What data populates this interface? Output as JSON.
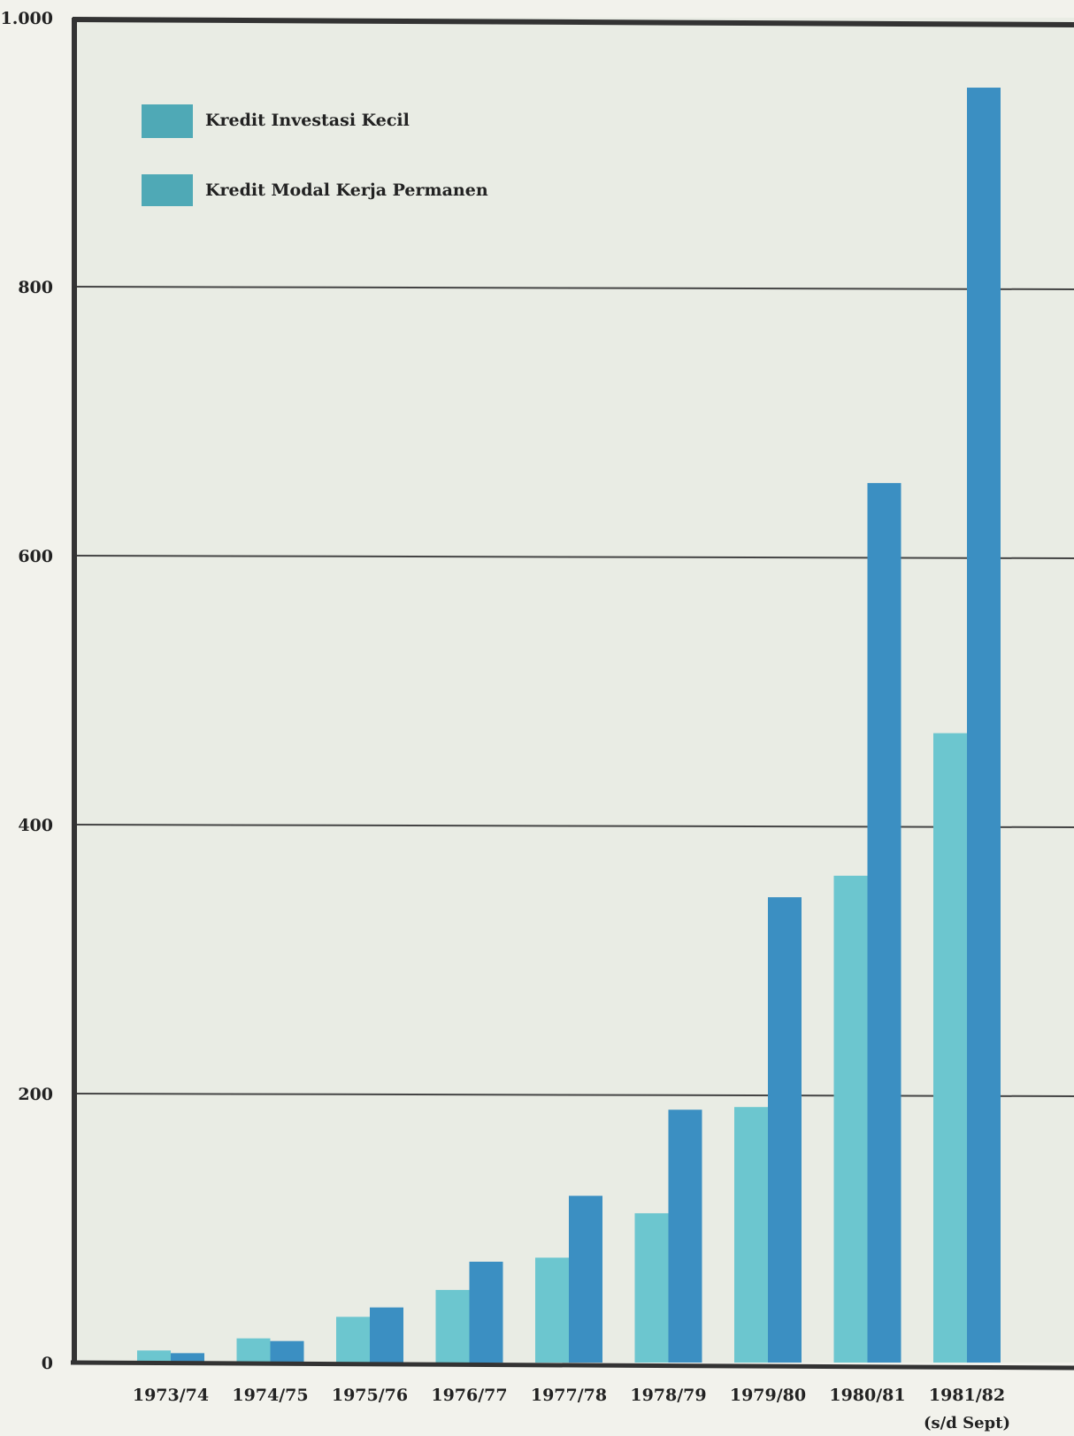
{
  "chart_data": {
    "type": "bar",
    "title": "",
    "xlabel": "",
    "ylabel": "",
    "ylim": [
      0,
      1000
    ],
    "yticks": [
      {
        "value": 0,
        "label": "0"
      },
      {
        "value": 200,
        "label": "200"
      },
      {
        "value": 400,
        "label": "400"
      },
      {
        "value": 600,
        "label": "600"
      },
      {
        "value": 800,
        "label": "800"
      },
      {
        "value": 1000,
        "label": "1.000"
      }
    ],
    "grid": true,
    "legend_position": "top-left",
    "categories": [
      "1973/74",
      "1974/75",
      "1975/76",
      "1976/77",
      "1977/78",
      "1978/79",
      "1979/80",
      "1980/81",
      "1981/82"
    ],
    "category_notes": [
      "",
      "",
      "",
      "",
      "",
      "",
      "",
      "",
      "(s/d Sept)"
    ],
    "series": [
      {
        "name": "Kredit Investasi Kecil",
        "color": "#6cc6cf",
        "values": [
          9,
          18,
          34,
          54,
          78,
          111,
          190,
          362,
          468
        ]
      },
      {
        "name": "Kredit Modal Kerja Permanen",
        "color": "#3b8fc2",
        "values": [
          7,
          16,
          41,
          75,
          124,
          188,
          346,
          654,
          948
        ]
      }
    ],
    "legend_swatch_color": "#4fa9b6",
    "colors": {
      "background": "#f2f2ec",
      "plot_background": "#e9ece4",
      "frame": "#333333",
      "grid": "#444444"
    }
  }
}
